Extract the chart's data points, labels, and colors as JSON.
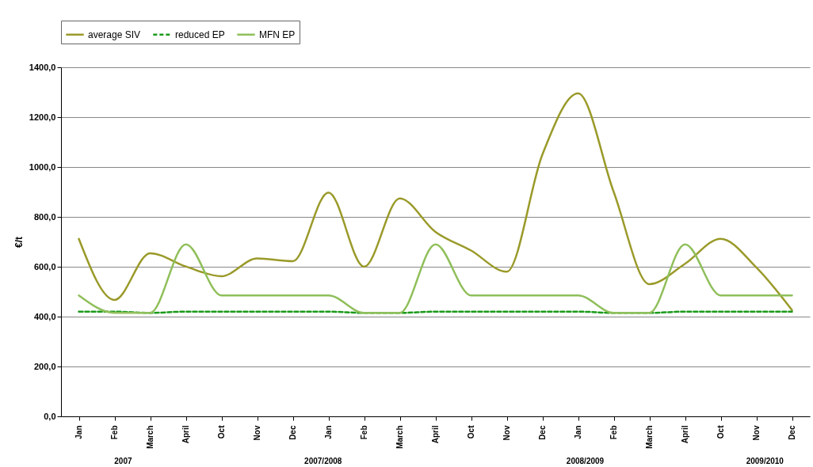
{
  "chart_data": {
    "type": "line",
    "ylabel": "€/t",
    "categories": [
      "Jan",
      "Feb",
      "March",
      "April",
      "Oct",
      "Nov",
      "Dec",
      "Jan",
      "Feb",
      "March",
      "April",
      "Oct",
      "Nov",
      "Dec",
      "Jan",
      "Feb",
      "March",
      "April",
      "Oct",
      "Nov",
      "Dec"
    ],
    "series": [
      {
        "name": "average SIV",
        "color": "#9a9a2a",
        "line_style": "solid",
        "values": [
          712,
          467,
          654,
          601,
          562,
          633,
          622,
          898,
          600,
          874,
          740,
          665,
          580,
          1050,
          1295,
          900,
          530,
          612,
          712,
          597,
          426
        ]
      },
      {
        "name": "reduced EP",
        "color": "#1a9a1a",
        "line_style": "dashed",
        "values": [
          420,
          420,
          415,
          420,
          420,
          420,
          420,
          420,
          415,
          415,
          420,
          420,
          420,
          420,
          420,
          415,
          415,
          420,
          420,
          420,
          420
        ]
      },
      {
        "name": "MFN EP",
        "color": "#8fbf5a",
        "line_style": "solid",
        "values": [
          485,
          415,
          415,
          690,
          485,
          485,
          485,
          485,
          415,
          415,
          690,
          485,
          485,
          485,
          485,
          415,
          415,
          690,
          485,
          485,
          485
        ]
      }
    ],
    "ylim": [
      0,
      1400
    ],
    "yticks": [
      {
        "value": 0,
        "label": "0,0"
      },
      {
        "value": 200,
        "label": "200,0"
      },
      {
        "value": 400,
        "label": "400,0"
      },
      {
        "value": 600,
        "label": "600,0"
      },
      {
        "value": 800,
        "label": "800,0"
      },
      {
        "value": 1000,
        "label": "1000,0"
      },
      {
        "value": 1200,
        "label": "1200,0"
      },
      {
        "value": 1400,
        "label": "1400,0"
      }
    ],
    "grid": "y",
    "legend": "top",
    "marker": "none",
    "annotations": [
      "2007",
      "2007/2008",
      "2008/2009",
      "2009/2010"
    ]
  }
}
